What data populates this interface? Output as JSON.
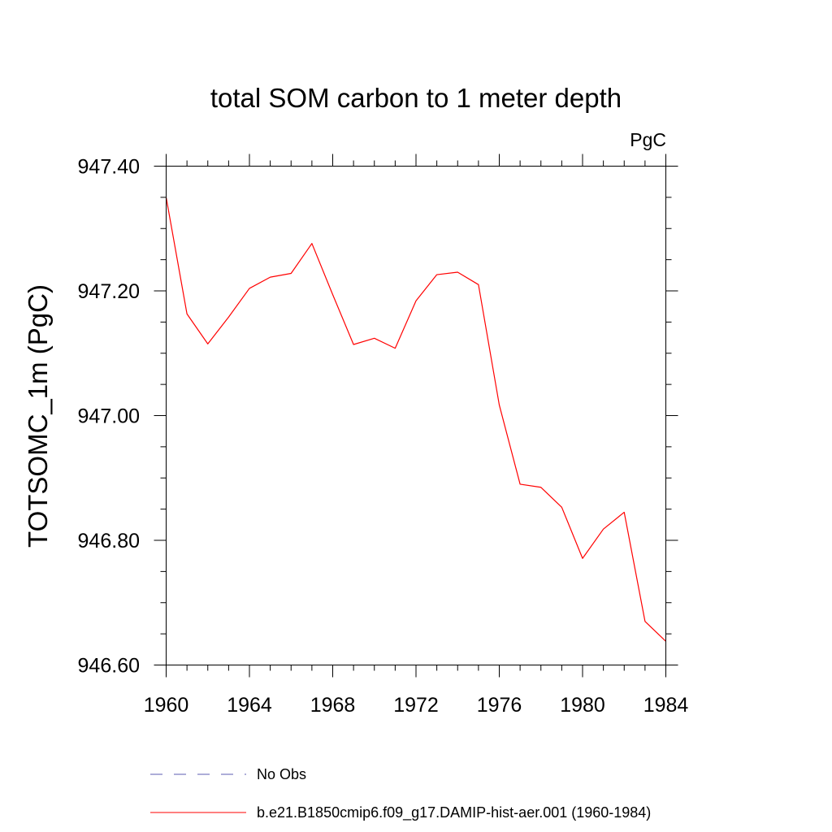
{
  "chart_data": {
    "type": "line",
    "title": "total SOM carbon to 1 meter depth",
    "units": "PgC",
    "ylabel": "TOTSOMC_1m  (PgC)",
    "xlabel": "",
    "xlim": [
      1960,
      1984
    ],
    "ylim": [
      946.6,
      947.4
    ],
    "xticks": [
      1960,
      1964,
      1968,
      1972,
      1976,
      1980,
      1984
    ],
    "yticks": [
      946.6,
      946.8,
      947.0,
      947.2,
      947.4
    ],
    "ytick_labels": [
      "946.60",
      "946.80",
      "947.00",
      "947.20",
      "947.40"
    ],
    "grid": false,
    "legend_position": "bottom",
    "series": [
      {
        "name": "No Obs",
        "color": "#5b5bb0",
        "dash": "dashed",
        "x": [],
        "y": []
      },
      {
        "name": "b.e21.B1850cmip6.f09_g17.DAMIP-hist-aer.001 (1960-1984)",
        "color": "#ff0000",
        "dash": "solid",
        "x": [
          1960,
          1961,
          1962,
          1963,
          1964,
          1965,
          1966,
          1967,
          1968,
          1969,
          1970,
          1971,
          1972,
          1973,
          1974,
          1975,
          1976,
          1977,
          1978,
          1979,
          1980,
          1981,
          1982,
          1983,
          1984
        ],
        "y": [
          947.35,
          947.163,
          947.115,
          947.158,
          947.204,
          947.222,
          947.228,
          947.276,
          947.194,
          947.114,
          947.124,
          947.108,
          947.184,
          947.226,
          947.23,
          947.21,
          947.017,
          946.89,
          946.885,
          946.853,
          946.771,
          946.818,
          946.845,
          946.67,
          946.638
        ]
      }
    ]
  }
}
